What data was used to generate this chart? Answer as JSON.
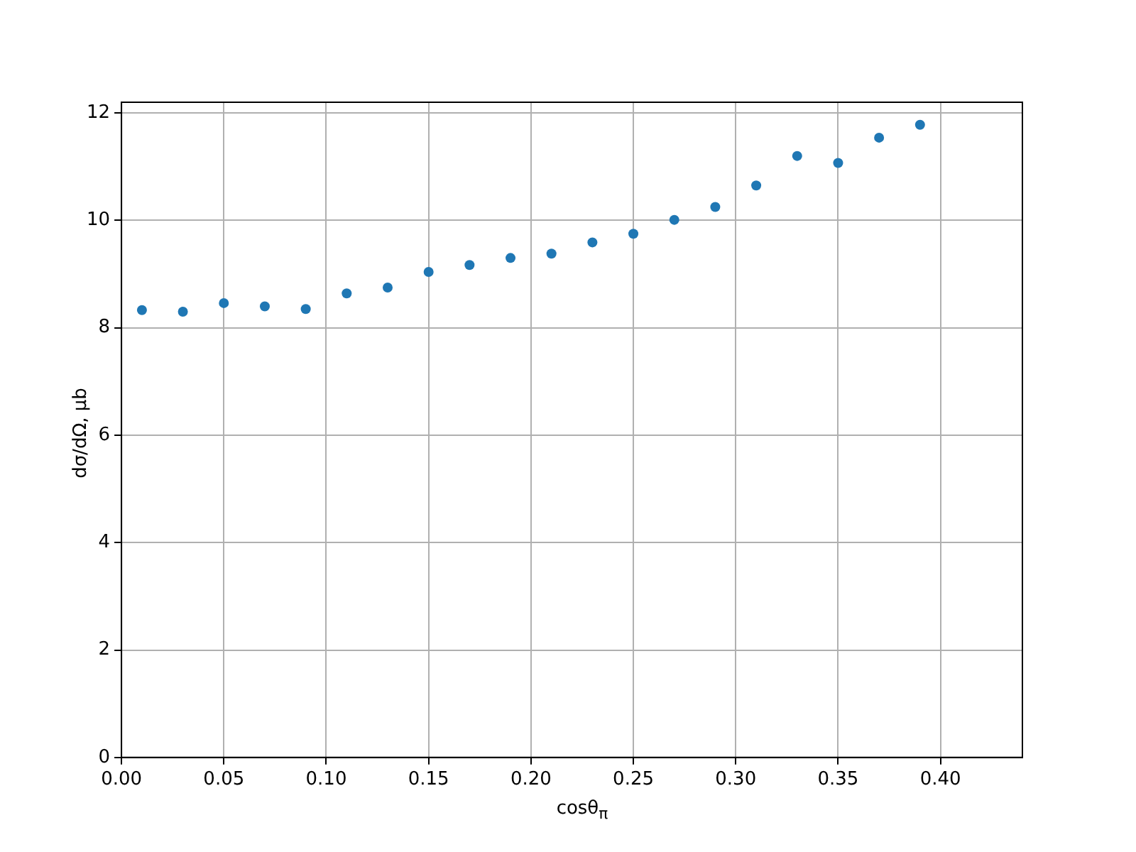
{
  "chart_data": {
    "type": "scatter",
    "xlabel": "cosθ$_{π}$",
    "ylabel": "dσ/dΩ, μb",
    "x": [
      0.01,
      0.03,
      0.05,
      0.07,
      0.09,
      0.11,
      0.13,
      0.15,
      0.17,
      0.19,
      0.21,
      0.23,
      0.25,
      0.27,
      0.29,
      0.31,
      0.33,
      0.35,
      0.37,
      0.39
    ],
    "series": [
      {
        "color": "#1f77b4",
        "values": [
          8.33,
          8.3,
          8.46,
          8.4,
          8.35,
          8.64,
          8.75,
          9.04,
          9.17,
          9.3,
          9.38,
          9.59,
          9.75,
          10.01,
          10.25,
          10.65,
          11.2,
          11.07,
          11.54,
          11.78
        ]
      }
    ],
    "xlim": [
      0,
      0.44
    ],
    "xticks": [
      {
        "value": 0,
        "label": "0.00"
      },
      {
        "value": 0.05,
        "label": "0.05"
      },
      {
        "value": 0.1,
        "label": "0.10"
      },
      {
        "value": 0.15,
        "label": "0.15"
      },
      {
        "value": 0.2,
        "label": "0.20"
      },
      {
        "value": 0.25,
        "label": "0.25"
      },
      {
        "value": 0.3,
        "label": "0.30"
      },
      {
        "value": 0.35,
        "label": "0.35"
      },
      {
        "value": 0.4,
        "label": "0.40"
      }
    ],
    "ylim": [
      0,
      12.2
    ],
    "yticks": [
      0,
      2,
      4,
      6,
      8,
      10,
      12
    ],
    "grid": true,
    "marker": "circle",
    "legend": false
  }
}
